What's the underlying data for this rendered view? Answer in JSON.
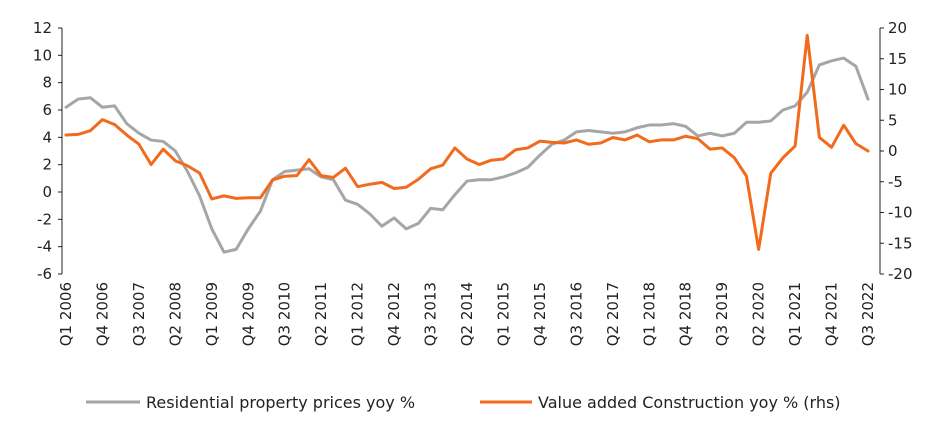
{
  "chart_data": {
    "type": "line",
    "xlabel": "",
    "ylabel": "",
    "x": [
      "Q1 2006",
      "Q2 2006",
      "Q3 2006",
      "Q4 2006",
      "Q1 2007",
      "Q2 2007",
      "Q3 2007",
      "Q4 2007",
      "Q1 2008",
      "Q2 2008",
      "Q3 2008",
      "Q4 2008",
      "Q1 2009",
      "Q2 2009",
      "Q3 2009",
      "Q4 2009",
      "Q1 2010",
      "Q2 2010",
      "Q3 2010",
      "Q4 2010",
      "Q1 2011",
      "Q2 2011",
      "Q3 2011",
      "Q4 2011",
      "Q1 2012",
      "Q2 2012",
      "Q3 2012",
      "Q4 2012",
      "Q1 2013",
      "Q2 2013",
      "Q3 2013",
      "Q4 2013",
      "Q1 2014",
      "Q2 2014",
      "Q3 2014",
      "Q4 2014",
      "Q1 2015",
      "Q2 2015",
      "Q3 2015",
      "Q4 2015",
      "Q1 2016",
      "Q2 2016",
      "Q3 2016",
      "Q4 2016",
      "Q1 2017",
      "Q2 2017",
      "Q3 2017",
      "Q4 2017",
      "Q1 2018",
      "Q2 2018",
      "Q3 2018",
      "Q4 2018",
      "Q1 2019",
      "Q2 2019",
      "Q3 2019",
      "Q4 2019",
      "Q1 2020",
      "Q2 2020",
      "Q3 2020",
      "Q4 2020",
      "Q1 2021",
      "Q2 2021",
      "Q3 2021",
      "Q4 2021",
      "Q1 2022",
      "Q2 2022",
      "Q3 2022"
    ],
    "tick_labels": [
      "Q1 2006",
      "Q4 2006",
      "Q3 2007",
      "Q2 2008",
      "Q1 2009",
      "Q4 2009",
      "Q3 2010",
      "Q2 2011",
      "Q1 2012",
      "Q4 2012",
      "Q3 2013",
      "Q2 2014",
      "Q1 2015",
      "Q4 2015",
      "Q3 2016",
      "Q2 2017",
      "Q1 2018",
      "Q4 2018",
      "Q3 2019",
      "Q2 2020",
      "Q1 2021",
      "Q4 2021",
      "Q3 2022"
    ],
    "y_left": {
      "min": -6,
      "max": 12,
      "ticks": [
        -6,
        -4,
        -2,
        0,
        2,
        4,
        6,
        8,
        10,
        12
      ]
    },
    "y_right": {
      "min": -20,
      "max": 20,
      "ticks": [
        -20,
        -15,
        -10,
        -5,
        0,
        5,
        10,
        15,
        20
      ]
    },
    "grid": false,
    "legend_position": "bottom",
    "series": [
      {
        "name": "Residential property prices yoy %",
        "axis": "left",
        "color": "#a6a6a6",
        "values": [
          6.2,
          6.8,
          6.9,
          6.2,
          6.3,
          5.0,
          4.3,
          3.8,
          3.7,
          3.0,
          1.5,
          -0.3,
          -2.7,
          -4.4,
          -4.2,
          -2.7,
          -1.4,
          0.9,
          1.5,
          1.6,
          1.7,
          1.1,
          0.9,
          -0.6,
          -0.9,
          -1.6,
          -2.5,
          -1.9,
          -2.7,
          -2.3,
          -1.2,
          -1.3,
          -0.2,
          0.8,
          0.9,
          0.9,
          1.1,
          1.4,
          1.8,
          2.7,
          3.5,
          3.8,
          4.4,
          4.5,
          4.4,
          4.3,
          4.4,
          4.7,
          4.9,
          4.9,
          5.0,
          4.8,
          4.1,
          4.3,
          4.1,
          4.3,
          5.1,
          5.1,
          5.2,
          6.0,
          6.3,
          7.3,
          9.3,
          9.6,
          9.8,
          9.2,
          6.8
        ]
      },
      {
        "name": "Value added Construction yoy % (rhs)",
        "axis": "right",
        "color": "#f26b1d",
        "values": [
          2.6,
          2.7,
          3.3,
          5.1,
          4.3,
          2.6,
          1.1,
          -2.2,
          0.3,
          -1.6,
          -2.4,
          -3.6,
          -7.8,
          -7.3,
          -7.7,
          -7.6,
          -7.6,
          -4.7,
          -4.1,
          -4.0,
          -1.4,
          -4.0,
          -4.3,
          -2.8,
          -5.8,
          -5.4,
          -5.1,
          -6.1,
          -5.9,
          -4.6,
          -2.9,
          -2.3,
          0.5,
          -1.3,
          -2.2,
          -1.5,
          -1.3,
          0.2,
          0.5,
          1.6,
          1.4,
          1.3,
          1.8,
          1.1,
          1.3,
          2.2,
          1.8,
          2.6,
          1.5,
          1.8,
          1.8,
          2.4,
          2.0,
          0.3,
          0.5,
          -1.1,
          -4.1,
          -16.0,
          -3.6,
          -1.1,
          0.8,
          18.8,
          2.2,
          0.6,
          4.2,
          1.2,
          0.0
        ]
      }
    ]
  }
}
